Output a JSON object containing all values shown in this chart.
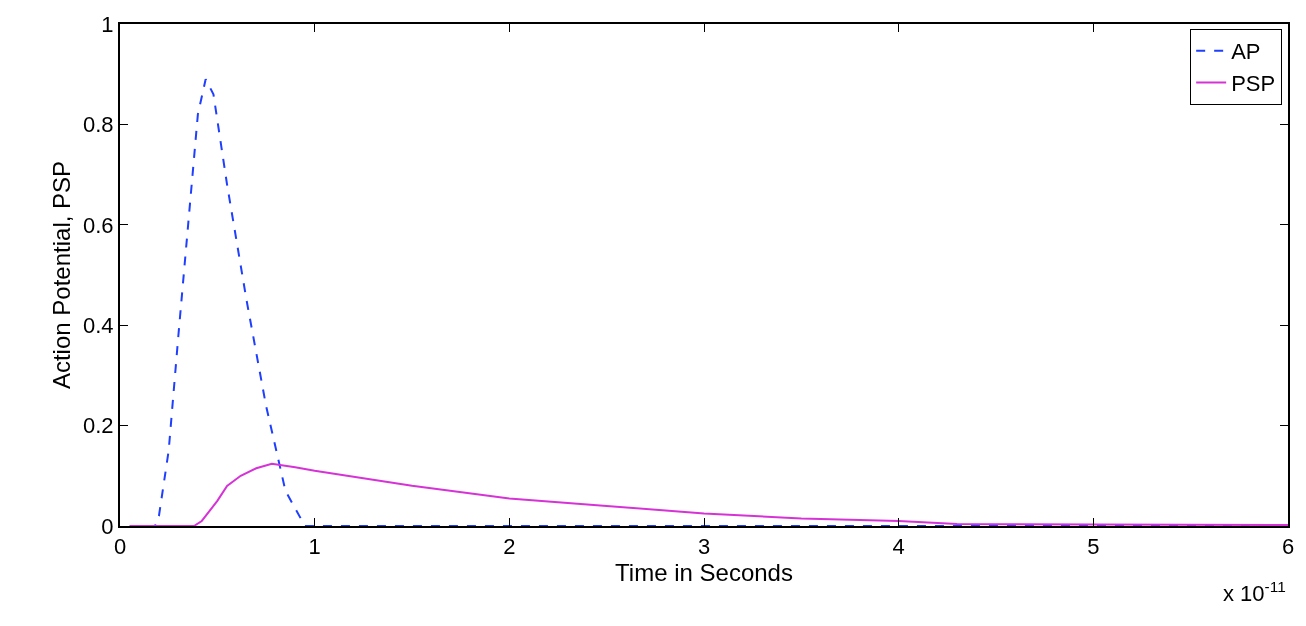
{
  "chart_data": {
    "type": "line",
    "xlabel": "Time in Seconds",
    "ylabel": "Action Potential, PSP",
    "xlim": [
      0,
      6
    ],
    "xticks": [
      0,
      1,
      2,
      3,
      4,
      5,
      6
    ],
    "ylim": [
      0,
      1
    ],
    "yticks": [
      0,
      0.2,
      0.4,
      0.6,
      0.8,
      1
    ],
    "legend": "top right",
    "marker": "none",
    "annotations": [
      "x 10$^{-11}$"
    ],
    "series": [
      {
        "name": "AP",
        "color": "#1f3fff",
        "line_style": "dashed",
        "x": [
          0.05,
          0.18,
          0.2,
          0.25,
          0.3,
          0.35,
          0.4,
          0.44,
          0.48,
          0.55,
          0.65,
          0.75,
          0.85,
          0.95,
          6
        ],
        "values": [
          0,
          0,
          0.02,
          0.15,
          0.38,
          0.6,
          0.82,
          0.89,
          0.86,
          0.68,
          0.45,
          0.24,
          0.07,
          0,
          0
        ]
      },
      {
        "name": "PSP",
        "color": "#d633d6",
        "line_style": "solid",
        "x": [
          0.05,
          0.38,
          0.42,
          0.5,
          0.55,
          0.62,
          0.7,
          0.78,
          0.9,
          1,
          1.5,
          2,
          2.5,
          3,
          3.5,
          4,
          4.3,
          5,
          6
        ],
        "values": [
          0,
          0,
          0.01,
          0.05,
          0.08,
          0.1,
          0.115,
          0.124,
          0.117,
          0.11,
          0.08,
          0.055,
          0.04,
          0.025,
          0.015,
          0.01,
          0.004,
          0.003,
          0.002
        ]
      }
    ]
  }
}
